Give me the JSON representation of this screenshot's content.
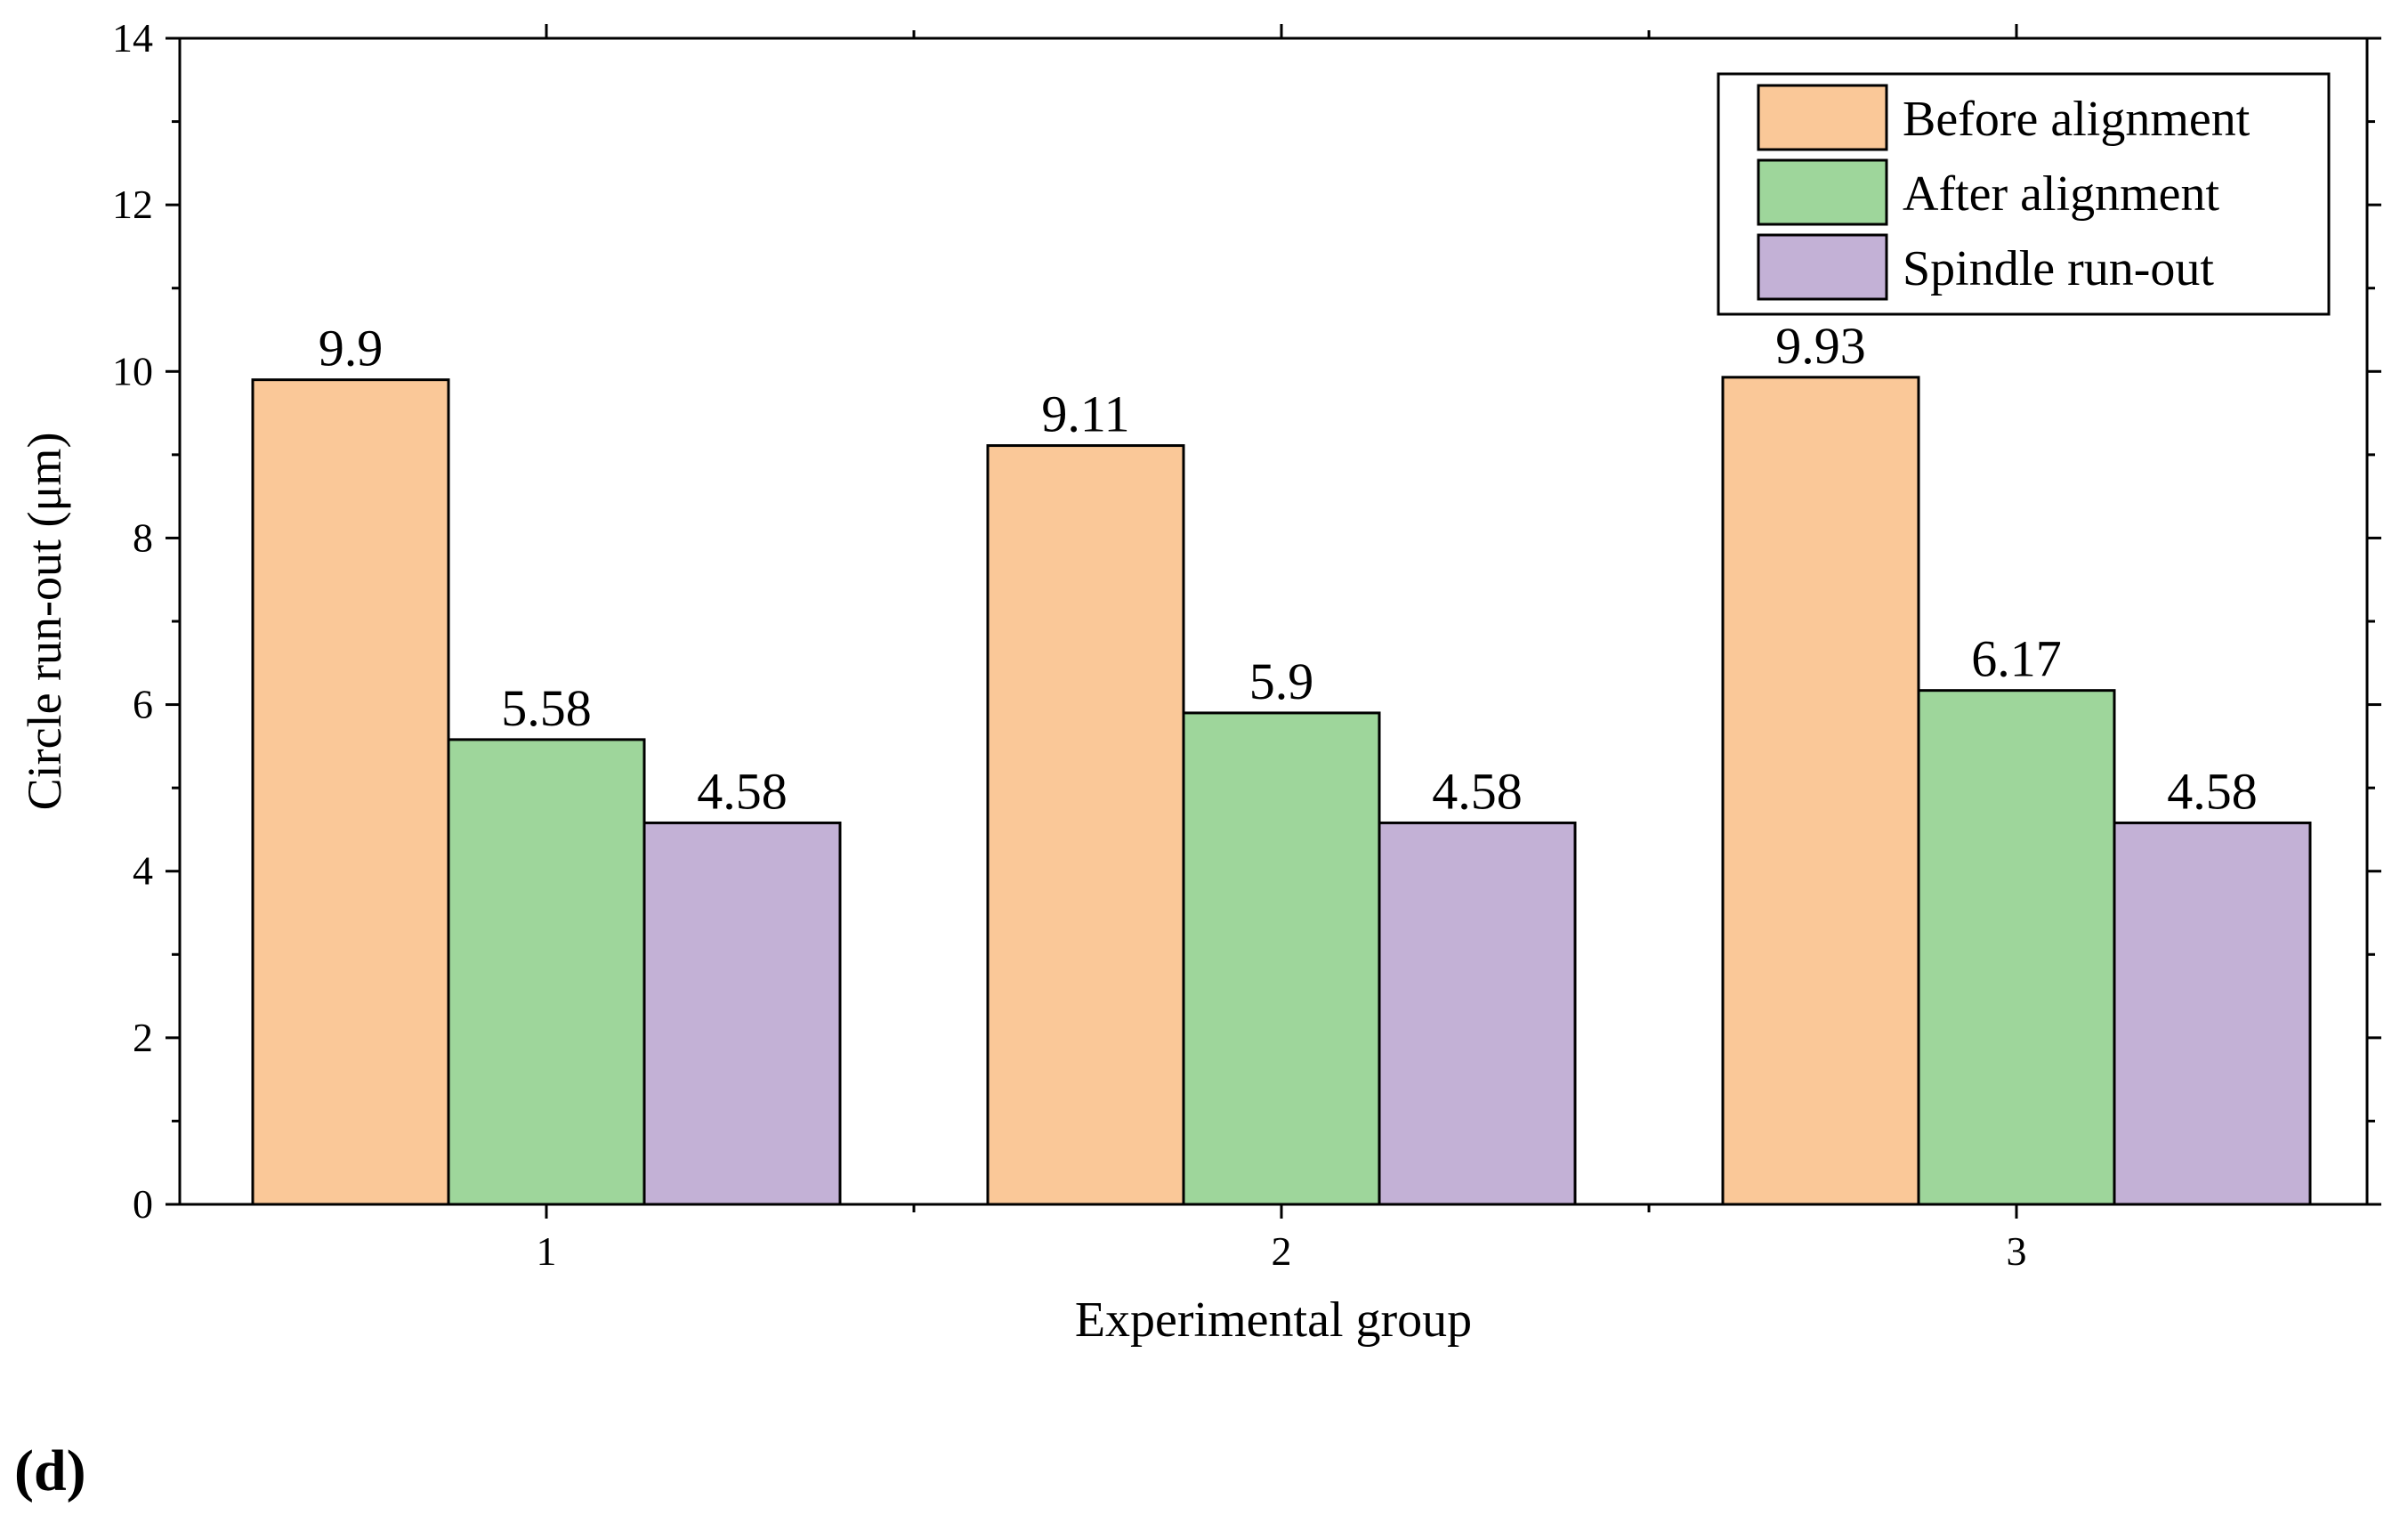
{
  "panel_label": "(d)",
  "chart_data": {
    "type": "bar",
    "title": "",
    "xlabel": "Experimental group",
    "ylabel": "Circle run-out (μm)",
    "categories": [
      "1",
      "2",
      "3"
    ],
    "ylim": [
      0,
      14
    ],
    "yticks": [
      0,
      2,
      4,
      6,
      8,
      10,
      12,
      14
    ],
    "grid": false,
    "legend_position": "top-right",
    "series": [
      {
        "name": "Before alignment",
        "values": [
          9.9,
          9.11,
          9.93
        ],
        "labels": [
          "9.9",
          "9.11",
          "9.93"
        ],
        "color": "#FAC898"
      },
      {
        "name": "After alignment",
        "values": [
          5.58,
          5.9,
          6.17
        ],
        "labels": [
          "5.58",
          "5.9",
          "6.17"
        ],
        "color": "#9ED69B"
      },
      {
        "name": "Spindle run-out",
        "values": [
          4.58,
          4.58,
          4.58
        ],
        "labels": [
          "4.58",
          "4.58",
          "4.58"
        ],
        "color": "#C3B1D6"
      }
    ]
  }
}
